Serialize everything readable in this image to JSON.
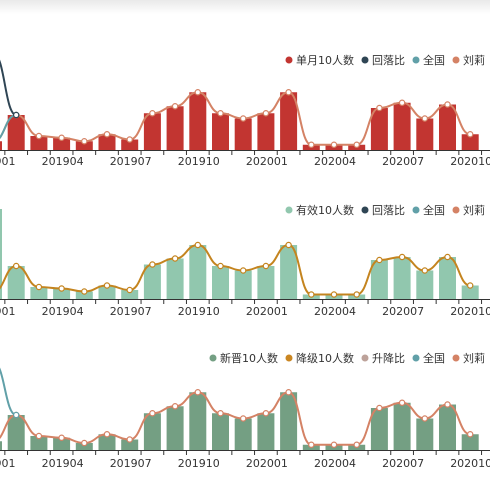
{
  "chart_data": [
    {
      "type": "bar",
      "categories": [
        "201901",
        "201902",
        "201903",
        "201904",
        "201905",
        "201906",
        "201907",
        "201908",
        "201909",
        "201910",
        "201911",
        "201912",
        "202001",
        "202002",
        "202003",
        "202004",
        "202005",
        "202006",
        "202007",
        "202008",
        "202009",
        "202010",
        "202011",
        "202012"
      ],
      "tick_labels": [
        "201901",
        "201904",
        "201907",
        "201910",
        "202001",
        "202004",
        "202007",
        "202010"
      ],
      "legend": [
        {
          "name": "单月10人数",
          "color": "#c23531"
        },
        {
          "name": "回落比",
          "color": "#2f4554"
        },
        {
          "name": "全国",
          "color": "#61a0a8"
        },
        {
          "name": "刘莉",
          "color": "#d48265"
        }
      ],
      "series": [
        {
          "name": "单月10人数",
          "type": "bar",
          "color": "#c23531",
          "values": [
            5,
            20,
            8,
            7,
            5,
            9,
            6,
            21,
            25,
            33,
            21,
            18,
            21,
            33,
            3,
            3,
            3,
            24,
            27,
            18,
            26,
            9,
            0,
            0
          ]
        },
        {
          "name": "刘莉",
          "type": "line",
          "color": "#d48265",
          "values": [
            5,
            20,
            8,
            7,
            5,
            9,
            6,
            21,
            25,
            33,
            21,
            18,
            21,
            33,
            3,
            3,
            3,
            24,
            27,
            18,
            26,
            9,
            null,
            null
          ]
        },
        {
          "name": "全国",
          "type": "line",
          "color": "#61a0a8",
          "values": [
            5,
            20,
            null,
            null,
            null,
            null,
            null,
            null,
            null,
            null,
            null,
            null,
            null,
            null,
            null,
            null,
            null,
            null,
            null,
            null,
            null,
            null,
            null,
            null
          ]
        },
        {
          "name": "回落比",
          "type": "line",
          "color": "#2f4554",
          "values": [
            55,
            20,
            null,
            null,
            null,
            null,
            null,
            null,
            null,
            null,
            null,
            null,
            null,
            null,
            null,
            null,
            null,
            null,
            null,
            null,
            null,
            null,
            null,
            null
          ]
        }
      ]
    },
    {
      "type": "bar",
      "categories": [
        "201901",
        "201902",
        "201903",
        "201904",
        "201905",
        "201906",
        "201907",
        "201908",
        "201909",
        "201910",
        "201911",
        "201912",
        "202001",
        "202002",
        "202003",
        "202004",
        "202005",
        "202006",
        "202007",
        "202008",
        "202009",
        "202010",
        "202011",
        "202012"
      ],
      "tick_labels": [
        "201901",
        "201904",
        "201907",
        "201910",
        "202001",
        "202004",
        "202007",
        "202010"
      ],
      "legend": [
        {
          "name": "有效10人数",
          "color": "#91c7ae"
        },
        {
          "name": "回落比",
          "color": "#2f4554"
        },
        {
          "name": "全国",
          "color": "#61a0a8"
        },
        {
          "name": "刘莉",
          "color": "#d48265"
        }
      ],
      "series": [
        {
          "name": "有效10人数",
          "type": "bar",
          "color": "#91c7ae",
          "values": [
            60,
            22,
            8,
            7,
            5,
            9,
            6,
            23,
            27,
            36,
            22,
            19,
            22,
            36,
            3,
            3,
            3,
            26,
            28,
            19,
            28,
            9,
            0,
            0
          ]
        },
        {
          "name": "刘莉",
          "type": "line",
          "color": "#c4841f",
          "values": [
            5,
            22,
            8,
            7,
            5,
            9,
            6,
            23,
            27,
            36,
            22,
            19,
            22,
            36,
            3,
            3,
            3,
            26,
            28,
            19,
            28,
            9,
            null,
            null
          ]
        }
      ]
    },
    {
      "type": "bar",
      "categories": [
        "201901",
        "201902",
        "201903",
        "201904",
        "201905",
        "201906",
        "201907",
        "201908",
        "201909",
        "201910",
        "201911",
        "201912",
        "202001",
        "202002",
        "202003",
        "202004",
        "202005",
        "202006",
        "202007",
        "202008",
        "202009",
        "202010",
        "202011",
        "202012"
      ],
      "tick_labels": [
        "201901",
        "201904",
        "201907",
        "201910",
        "202001",
        "202004",
        "202007",
        "202010"
      ],
      "legend": [
        {
          "name": "新晋10人数",
          "color": "#749f83"
        },
        {
          "name": "降级10人数",
          "color": "#ca8622"
        },
        {
          "name": "升降比",
          "color": "#bda29a"
        },
        {
          "name": "全国",
          "color": "#61a0a8"
        },
        {
          "name": "刘莉",
          "color": "#d48265"
        }
      ],
      "series": [
        {
          "name": "新晋10人数",
          "type": "bar",
          "color": "#749f83",
          "values": [
            5,
            20,
            8,
            7,
            4,
            9,
            6,
            21,
            25,
            33,
            21,
            18,
            21,
            33,
            3,
            3,
            3,
            24,
            27,
            18,
            26,
            9,
            0,
            0
          ]
        },
        {
          "name": "刘莉",
          "type": "line",
          "color": "#d48265",
          "values": [
            5,
            20,
            8,
            7,
            4,
            9,
            6,
            21,
            25,
            33,
            21,
            18,
            21,
            33,
            3,
            3,
            3,
            24,
            27,
            18,
            26,
            9,
            null,
            null
          ]
        },
        {
          "name": "全国",
          "type": "line",
          "color": "#61a0a8",
          "values": [
            50,
            20,
            null,
            null,
            null,
            null,
            null,
            null,
            null,
            null,
            null,
            null,
            null,
            null,
            null,
            null,
            null,
            null,
            null,
            null,
            null,
            null,
            null,
            null
          ]
        }
      ]
    }
  ]
}
